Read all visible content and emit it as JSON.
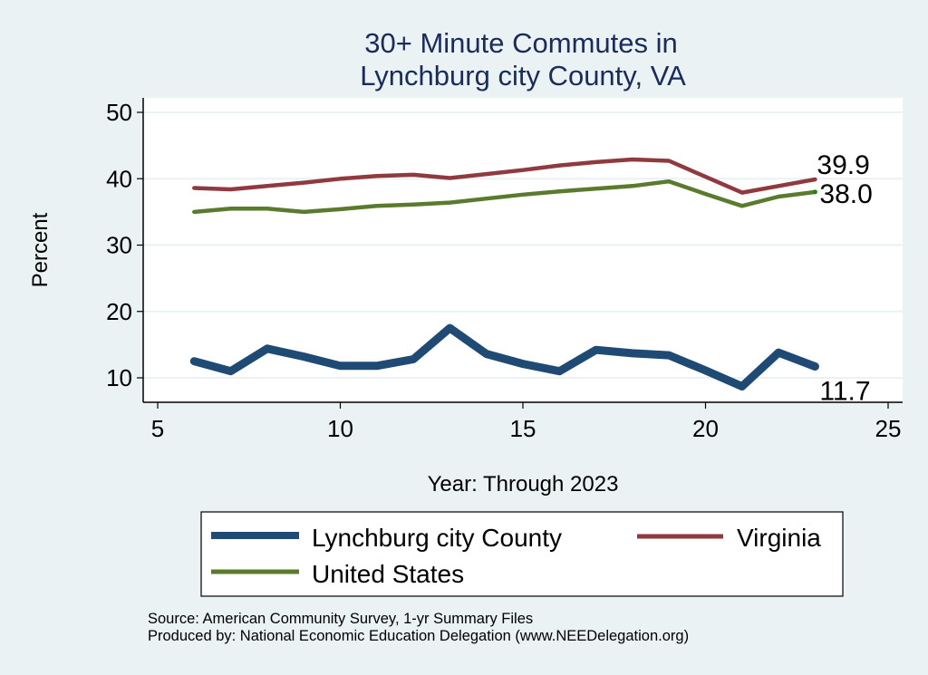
{
  "chart_data": {
    "type": "line",
    "title": [
      "30+ Minute Commutes in",
      "Lynchburg city County, VA"
    ],
    "xlabel": "Year: Through 2023",
    "ylabel": "Percent",
    "xlim": [
      5,
      25
    ],
    "ylim": [
      6,
      52
    ],
    "xticks": [
      5,
      10,
      15,
      20,
      25
    ],
    "yticks": [
      10,
      20,
      30,
      40,
      50
    ],
    "grid": true,
    "legend_position": "bottom",
    "x": [
      6,
      7,
      8,
      9,
      10,
      11,
      12,
      13,
      14,
      15,
      16,
      17,
      18,
      19,
      20,
      21,
      22,
      23
    ],
    "series": [
      {
        "name": "Lynchburg city County",
        "color": "#1f4a73",
        "values": [
          12.5,
          11.0,
          14.4,
          13.2,
          11.8,
          11.8,
          12.8,
          17.5,
          13.6,
          12.1,
          11.0,
          14.2,
          13.7,
          13.4,
          11.1,
          8.7,
          13.8,
          11.7
        ],
        "end_label": "11.7"
      },
      {
        "name": "Virginia",
        "color": "#903a3f",
        "values": [
          38.6,
          38.4,
          38.9,
          39.4,
          40.0,
          40.4,
          40.6,
          40.1,
          40.7,
          41.3,
          42.0,
          42.5,
          42.9,
          42.7,
          40.3,
          37.9,
          38.9,
          39.9
        ],
        "end_label": "39.9"
      },
      {
        "name": "United States",
        "color": "#5a7a2e",
        "values": [
          35.0,
          35.5,
          35.5,
          35.0,
          35.4,
          35.9,
          36.1,
          36.4,
          37.0,
          37.6,
          38.1,
          38.5,
          38.9,
          39.6,
          37.7,
          35.9,
          37.3,
          38.0
        ],
        "end_label": "38.0"
      }
    ],
    "notes": [
      "Source: American Community Survey, 1-yr Summary Files",
      "Produced by: National Economic Education Delegation (www.NEEDelegation.org)"
    ]
  }
}
